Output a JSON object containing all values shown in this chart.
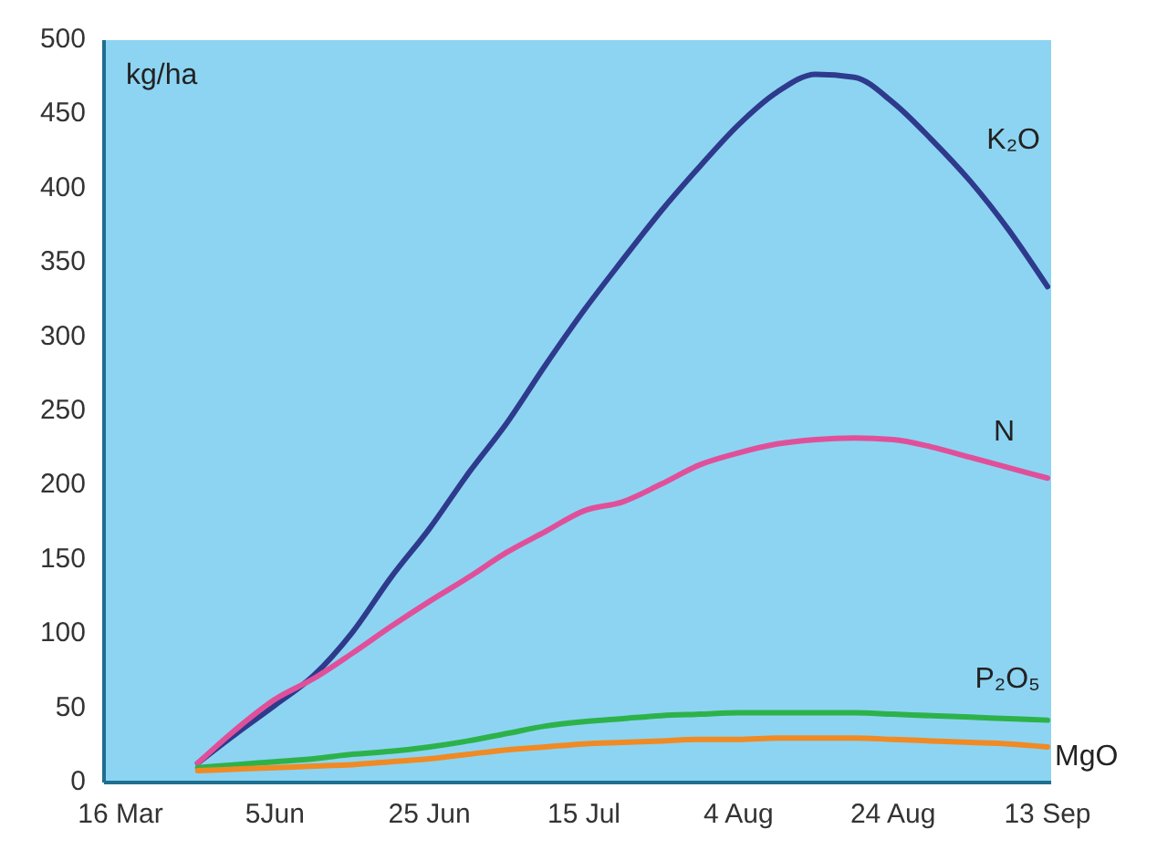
{
  "chart_data": {
    "type": "line",
    "ylabel": "kg/ha",
    "ylim": [
      0,
      500
    ],
    "categories": [
      "16 Mar",
      null,
      null,
      null,
      "5Jun",
      null,
      null,
      null,
      "25 Jun",
      null,
      null,
      null,
      "15 Jul",
      null,
      null,
      null,
      "4 Aug",
      null,
      null,
      null,
      "24 Aug",
      null,
      null,
      null,
      "13 Sep"
    ],
    "yticks": [
      0,
      50,
      100,
      150,
      200,
      250,
      300,
      350,
      400,
      450,
      500
    ],
    "grid": false,
    "marker": "none",
    "line_style": "solid",
    "series": [
      {
        "name": "K₂O",
        "color": "#2e3a8c",
        "values": [
          null,
          null,
          13,
          33,
          52,
          72,
          101,
          138,
          171,
          208,
          242,
          281,
          318,
          352,
          385,
          415,
          443,
          465,
          477,
          475,
          458,
          433,
          405,
          372,
          334
        ]
      },
      {
        "name": "N",
        "color": "#e0509a",
        "values": [
          null,
          null,
          13,
          36,
          56,
          70,
          87,
          105,
          122,
          138,
          155,
          169,
          183,
          189,
          201,
          214,
          222,
          228,
          231,
          232,
          231,
          226,
          219,
          212,
          205
        ]
      },
      {
        "name": "P₂O₅",
        "color": "#2db24a",
        "values": [
          null,
          null,
          10,
          12,
          14,
          16,
          19,
          21,
          24,
          28,
          33,
          38,
          41,
          43,
          45,
          46,
          47,
          47,
          47,
          47,
          46,
          45,
          44,
          43,
          42
        ]
      },
      {
        "name": "MgO",
        "color": "#f08a24",
        "values": [
          null,
          null,
          8,
          9,
          10,
          11,
          12,
          14,
          16,
          19,
          22,
          24,
          26,
          27,
          28,
          29,
          29,
          30,
          30,
          30,
          29,
          28,
          27,
          26,
          24
        ]
      }
    ]
  }
}
